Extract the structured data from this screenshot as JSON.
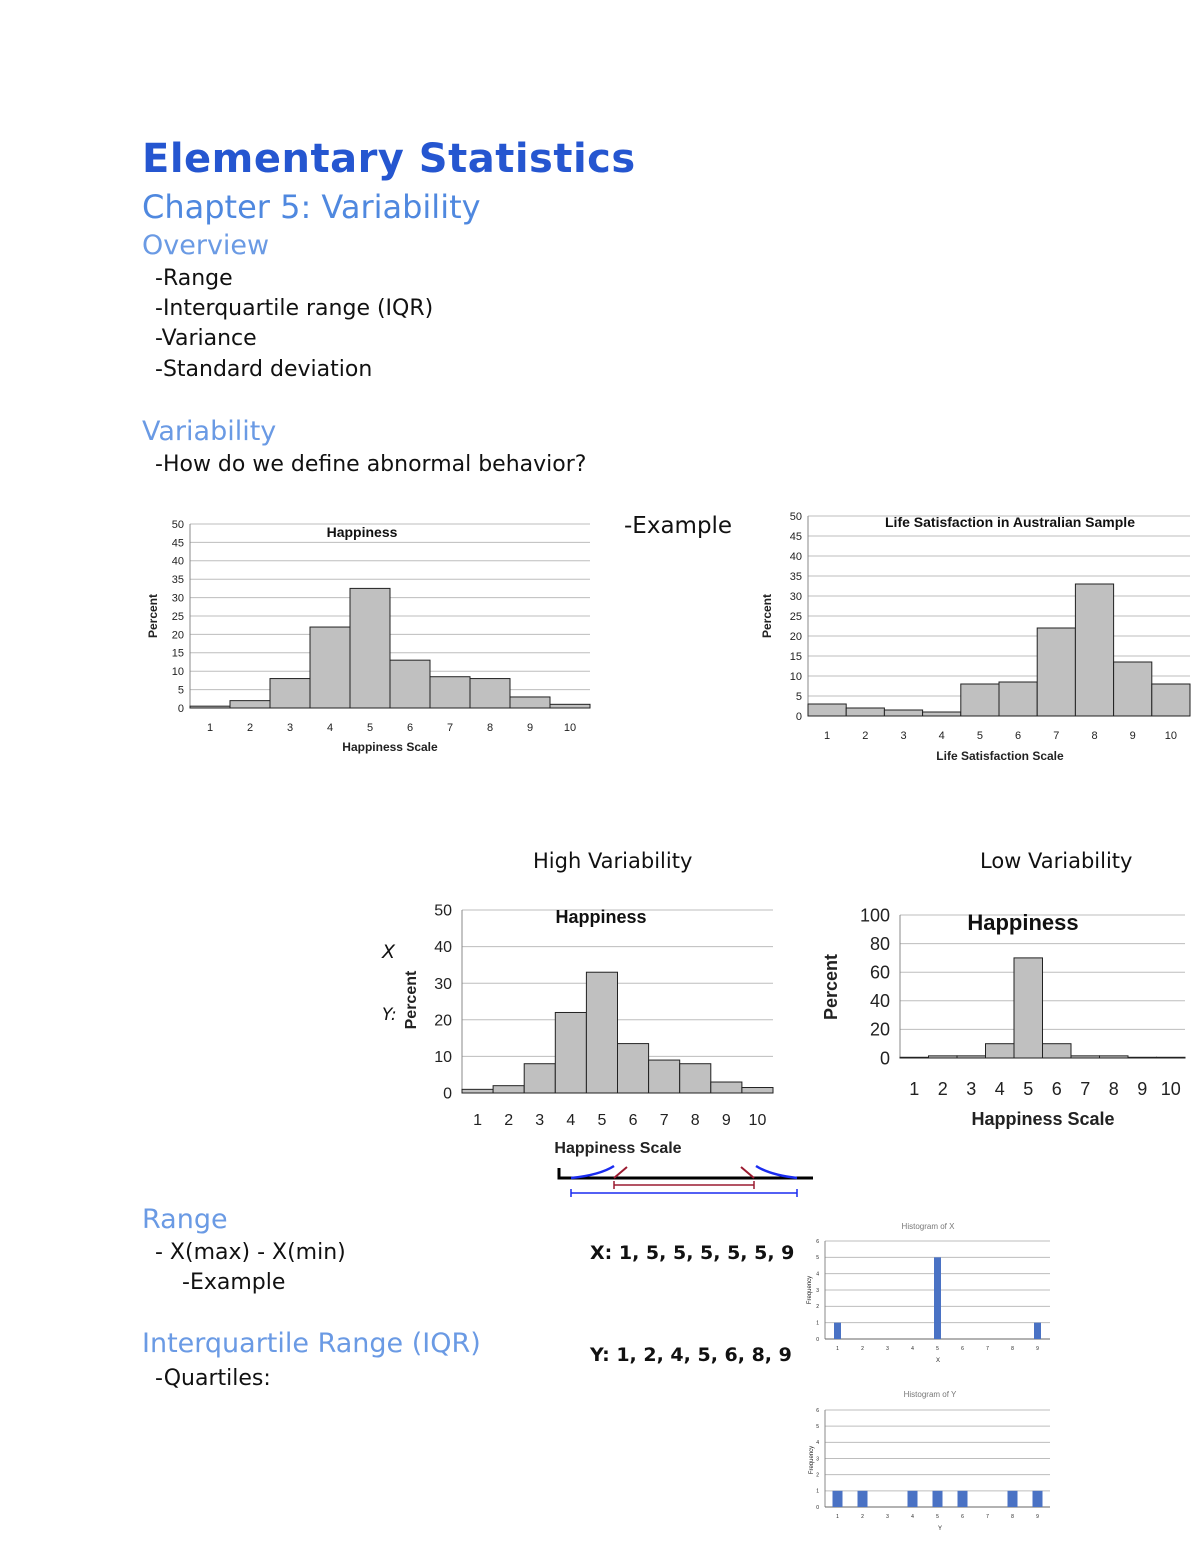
{
  "document": {
    "title": "Elementary Statistics",
    "chapter": "Chapter 5: Variability",
    "overview": {
      "heading": "Overview",
      "items": [
        "-Range",
        "-Interquartile range (IQR)",
        "-Variance",
        "-Standard deviation"
      ]
    },
    "variability": {
      "heading": "Variability",
      "question": "-How do we define abnormal behavior?",
      "example_label": "-Example",
      "high_label": "High Variability",
      "low_label": "Low Variability",
      "x_marker": "X",
      "y_marker": "Y:"
    },
    "range": {
      "heading": "Range",
      "formula": "- X(max) - X(min)",
      "example_label": "-Example",
      "x_values": "X: 1, 5, 5, 5, 5, 5, 9",
      "y_values": "Y: 1, 2, 4, 5, 6, 8, 9"
    },
    "iqr": {
      "heading": "Interquartile Range (IQR)",
      "quartiles_label": "-Quartiles:"
    }
  },
  "colors": {
    "title": "#2556d0",
    "heading": "#6a9ae4",
    "bar_gray": "#c0c0c0",
    "bar_blue": "#4a72c4",
    "range_blue": "#1a2cf0",
    "iqr_red": "#9b1b30"
  },
  "chart_data": [
    {
      "type": "bar",
      "title": "Happiness",
      "xlabel": "Happiness Scale",
      "ylabel": "Percent",
      "categories": [
        "1",
        "2",
        "3",
        "4",
        "5",
        "6",
        "7",
        "8",
        "9",
        "10"
      ],
      "values": [
        0.5,
        2,
        8,
        22,
        32.5,
        13,
        8.5,
        8,
        3,
        1
      ],
      "yticks": [
        0,
        5,
        10,
        15,
        20,
        25,
        30,
        35,
        40,
        45,
        50
      ],
      "ylim": [
        0,
        50
      ],
      "grid": true
    },
    {
      "type": "bar",
      "title": "Life Satisfaction in Australian Sample",
      "xlabel": "Life Satisfaction Scale",
      "ylabel": "Percent",
      "categories": [
        "1",
        "2",
        "3",
        "4",
        "5",
        "6",
        "7",
        "8",
        "9",
        "10"
      ],
      "values": [
        3,
        2,
        1.5,
        1,
        8,
        8.5,
        22,
        33,
        13.5,
        8
      ],
      "yticks": [
        0,
        5,
        10,
        15,
        20,
        25,
        30,
        35,
        40,
        45,
        50
      ],
      "ylim": [
        0,
        50
      ],
      "grid": true
    },
    {
      "type": "bar",
      "title": "Happiness",
      "xlabel": "Happiness Scale",
      "ylabel": "Percent",
      "categories": [
        "1",
        "2",
        "3",
        "4",
        "5",
        "6",
        "7",
        "8",
        "9",
        "10"
      ],
      "values": [
        1,
        2,
        8,
        22,
        33,
        13.5,
        9,
        8,
        3,
        1.5
      ],
      "yticks": [
        0,
        10,
        20,
        30,
        40,
        50
      ],
      "ylim": [
        0,
        50
      ],
      "grid": true
    },
    {
      "type": "bar",
      "title": "Happiness",
      "xlabel": "Happiness Scale",
      "ylabel": "Percent",
      "categories": [
        "1",
        "2",
        "3",
        "4",
        "5",
        "6",
        "7",
        "8",
        "9",
        "10"
      ],
      "values": [
        0.5,
        1.5,
        1.5,
        10,
        70,
        10,
        1.5,
        1.5,
        0.5,
        0.5
      ],
      "yticks": [
        0,
        20,
        40,
        60,
        80,
        100
      ],
      "ylim": [
        0,
        100
      ],
      "grid": true
    },
    {
      "type": "bar",
      "title": "Histogram of X",
      "xlabel": "X",
      "ylabel": "Frequency",
      "categories": [
        "1",
        "2",
        "3",
        "4",
        "5",
        "6",
        "7",
        "8",
        "9"
      ],
      "values": [
        1,
        0,
        0,
        0,
        5,
        0,
        0,
        0,
        1
      ],
      "yticks": [
        0,
        1,
        2,
        3,
        4,
        5,
        6
      ],
      "ylim": [
        0,
        6
      ],
      "grid": true
    },
    {
      "type": "bar",
      "title": "Histogram of Y",
      "xlabel": "Y",
      "ylabel": "Frequency",
      "categories": [
        "1",
        "2",
        "3",
        "4",
        "5",
        "6",
        "7",
        "8",
        "9"
      ],
      "values": [
        1,
        1,
        0,
        1,
        1,
        1,
        0,
        1,
        1
      ],
      "yticks": [
        0,
        1,
        2,
        3,
        4,
        5,
        6
      ],
      "ylim": [
        0,
        6
      ],
      "grid": true
    }
  ]
}
